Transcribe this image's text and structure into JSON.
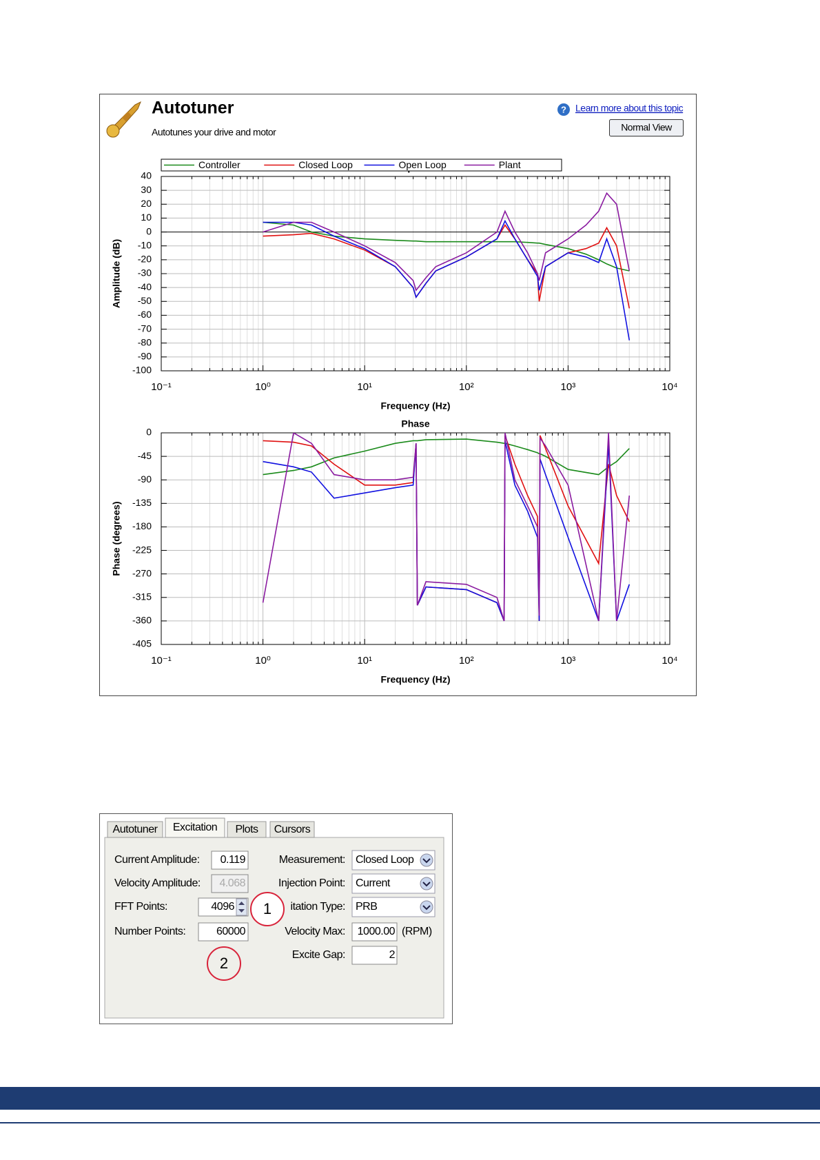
{
  "header": {
    "title": "Autotuner",
    "subtitle": "Autotunes your drive and motor",
    "help_link": "Learn more about this topic",
    "button": "Normal View"
  },
  "chart_data": [
    {
      "type": "line",
      "title": "Amplitude",
      "xlabel": "Frequency (Hz)",
      "ylabel": "Amplitude (dB)",
      "log_x": true,
      "grid": true,
      "legend": "top",
      "x": [
        1,
        2,
        3,
        5,
        10,
        20,
        30,
        32,
        40,
        50,
        100,
        200,
        240,
        300,
        400,
        500,
        520,
        600,
        1000,
        1500,
        2000,
        2400,
        3000,
        4000
      ],
      "series": [
        {
          "name": "Controller",
          "color": "#1a8a1a",
          "values": [
            7,
            5,
            0,
            -3,
            -5,
            -6,
            -6.5,
            -6.5,
            -7,
            -7,
            -7,
            -7,
            -7,
            -7,
            -7.5,
            -8,
            -8,
            -9,
            -12,
            -16,
            -20,
            -23,
            -26,
            -28
          ]
        },
        {
          "name": "Closed Loop",
          "color": "#e01010",
          "values": [
            -3,
            -2,
            -1,
            -5,
            -13,
            -25,
            -40,
            -47,
            -37,
            -28,
            -18,
            -5,
            5,
            -5,
            -20,
            -30,
            -50,
            -25,
            -15,
            -12,
            -8,
            3,
            -10,
            -55
          ]
        },
        {
          "name": "Open Loop",
          "color": "#1010e0",
          "values": [
            7,
            7,
            5,
            -3,
            -12,
            -25,
            -40,
            -47,
            -37,
            -28,
            -18,
            -5,
            8,
            -5,
            -20,
            -32,
            -42,
            -25,
            -15,
            -18,
            -22,
            -5,
            -25,
            -78
          ]
        },
        {
          "name": "Plant",
          "color": "#8a1aa0",
          "values": [
            0,
            7,
            7,
            0,
            -10,
            -22,
            -35,
            -42,
            -33,
            -25,
            -15,
            0,
            15,
            0,
            -15,
            -30,
            -35,
            -15,
            -5,
            5,
            15,
            28,
            20,
            -28
          ]
        }
      ],
      "xlim": [
        0.1,
        10000
      ],
      "xticks": [
        {
          "value": 0.1,
          "label": "10⁻¹"
        },
        {
          "value": 1,
          "label": "10⁰"
        },
        {
          "value": 10,
          "label": "10¹"
        },
        {
          "value": 100,
          "label": "10²"
        },
        {
          "value": 1000,
          "label": "10³"
        },
        {
          "value": 10000,
          "label": "10⁴"
        }
      ],
      "ylim": [
        -100,
        40
      ],
      "yticks": [
        40,
        30,
        20,
        10,
        0,
        -10,
        -20,
        -30,
        -40,
        -50,
        -60,
        -70,
        -80,
        -90,
        -100
      ]
    },
    {
      "type": "line",
      "title": "Phase",
      "xlabel": "Frequency (Hz)",
      "ylabel": "Phase (degrees)",
      "log_x": true,
      "grid": true,
      "x": [
        1,
        2,
        3,
        5,
        10,
        20,
        30,
        32,
        33,
        40,
        100,
        200,
        235,
        240,
        300,
        400,
        500,
        520,
        530,
        600,
        1000,
        2000,
        2500,
        3000,
        4000
      ],
      "series": [
        {
          "name": "Controller",
          "color": "#1a8a1a",
          "values": [
            -80,
            -72,
            -65,
            -48,
            -35,
            -20,
            -15,
            -15,
            -15,
            -13,
            -12,
            -18,
            -20,
            -20,
            -25,
            -32,
            -38,
            -40,
            -40,
            -45,
            -70,
            -80,
            -65,
            -55,
            -30
          ]
        },
        {
          "name": "Closed Loop",
          "color": "#e01010",
          "values": [
            -15,
            -18,
            -25,
            -60,
            -100,
            -100,
            -95,
            -20,
            -330,
            -295,
            -300,
            -325,
            -360,
            -5,
            -60,
            -120,
            -160,
            -360,
            -5,
            -30,
            -140,
            -250,
            -60,
            -120,
            -170
          ]
        },
        {
          "name": "Open Loop",
          "color": "#1010e0",
          "values": [
            -55,
            -65,
            -75,
            -125,
            -115,
            -105,
            -100,
            -20,
            -330,
            -295,
            -300,
            -325,
            -360,
            -15,
            -100,
            -150,
            -200,
            -360,
            -50,
            -80,
            -200,
            -360,
            -20,
            -360,
            -290
          ]
        },
        {
          "name": "Plant",
          "color": "#8a1aa0",
          "values": [
            -325,
            0,
            -20,
            -80,
            -90,
            -90,
            -85,
            -20,
            -330,
            -285,
            -290,
            -315,
            -360,
            0,
            -90,
            -140,
            -180,
            -350,
            -10,
            -25,
            -100,
            -360,
            0,
            -360,
            -120
          ]
        }
      ],
      "xlim": [
        0.1,
        10000
      ],
      "xticks": [
        {
          "value": 0.1,
          "label": "10⁻¹"
        },
        {
          "value": 1,
          "label": "10⁰"
        },
        {
          "value": 10,
          "label": "10¹"
        },
        {
          "value": 100,
          "label": "10²"
        },
        {
          "value": 1000,
          "label": "10³"
        },
        {
          "value": 10000,
          "label": "10⁴"
        }
      ],
      "ylim": [
        -405,
        0
      ],
      "yticks": [
        0,
        -45,
        -90,
        -135,
        -180,
        -225,
        -270,
        -315,
        -360,
        -405
      ]
    }
  ],
  "panel": {
    "tabs": [
      "Autotuner",
      "Excitation",
      "Plots",
      "Cursors"
    ],
    "left": [
      {
        "label": "Current Amplitude:",
        "value": "0.119"
      },
      {
        "label": "Velocity Amplitude:",
        "value": "4.068"
      },
      {
        "label": "FFT Points:",
        "value": "4096"
      },
      {
        "label": "Number Points:",
        "value": "60000"
      }
    ],
    "right": [
      {
        "label": "Measurement:",
        "value": "Closed Loop"
      },
      {
        "label": "Injection Point:",
        "value": "Current"
      },
      {
        "label": "itation Type:",
        "value": "PRB"
      },
      {
        "label": "Velocity Max:",
        "value": "1000.00",
        "unit": "(RPM)"
      },
      {
        "label": "Excite Gap:",
        "value": "2"
      }
    ],
    "annotations": [
      "1",
      "2"
    ]
  }
}
